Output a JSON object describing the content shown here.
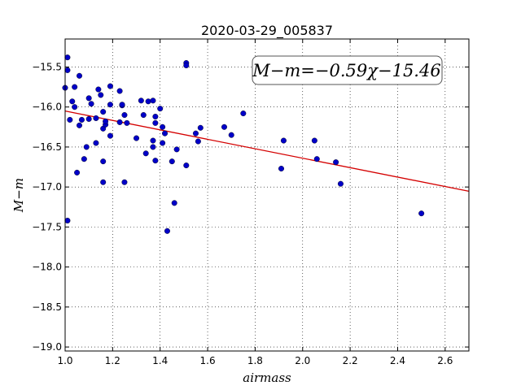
{
  "chart_data": {
    "type": "scatter",
    "title": "2020-03-29_005837",
    "xlabel": "airmass",
    "ylabel": "M−m",
    "xlim": [
      1.0,
      2.7
    ],
    "ylim": [
      -19.05,
      -15.15
    ],
    "y_inverted": true,
    "grid": true,
    "x_ticks": [
      1.0,
      1.2,
      1.4,
      1.6,
      1.8,
      2.0,
      2.2,
      2.4,
      2.6
    ],
    "x_tick_labels": [
      "1.0",
      "1.2",
      "1.4",
      "1.6",
      "1.8",
      "2.0",
      "2.2",
      "2.4",
      "2.6"
    ],
    "y_ticks": [
      -15.5,
      -16.0,
      -16.5,
      -17.0,
      -17.5,
      -18.0,
      -18.5,
      -19.0
    ],
    "y_tick_labels": [
      "−15.5",
      "−16.0",
      "−16.5",
      "−17.0",
      "−17.5",
      "−18.0",
      "−18.5",
      "−19.0"
    ],
    "annotation": "M−m=−0.59χ−15.46",
    "marker_color": "#0000c8",
    "fit_color": "#d40000",
    "fit": {
      "slope": -0.59,
      "intercept": -15.46
    },
    "points": [
      [
        1.0,
        -15.76
      ],
      [
        1.01,
        -17.42
      ],
      [
        1.01,
        -15.38
      ],
      [
        1.01,
        -15.54
      ],
      [
        1.02,
        -16.16
      ],
      [
        1.03,
        -15.93
      ],
      [
        1.04,
        -16.0
      ],
      [
        1.04,
        -15.75
      ],
      [
        1.05,
        -16.82
      ],
      [
        1.06,
        -16.23
      ],
      [
        1.06,
        -15.61
      ],
      [
        1.07,
        -16.16
      ],
      [
        1.08,
        -16.65
      ],
      [
        1.09,
        -16.5
      ],
      [
        1.1,
        -15.89
      ],
      [
        1.1,
        -16.15
      ],
      [
        1.11,
        -15.96
      ],
      [
        1.13,
        -16.45
      ],
      [
        1.13,
        -16.14
      ],
      [
        1.14,
        -15.78
      ],
      [
        1.15,
        -15.85
      ],
      [
        1.16,
        -16.06
      ],
      [
        1.16,
        -16.68
      ],
      [
        1.16,
        -16.94
      ],
      [
        1.16,
        -16.27
      ],
      [
        1.17,
        -16.22
      ],
      [
        1.17,
        -16.18
      ],
      [
        1.19,
        -16.36
      ],
      [
        1.19,
        -15.74
      ],
      [
        1.19,
        -15.97
      ],
      [
        1.23,
        -15.8
      ],
      [
        1.23,
        -16.19
      ],
      [
        1.24,
        -15.98
      ],
      [
        1.24,
        -15.97
      ],
      [
        1.25,
        -16.1
      ],
      [
        1.25,
        -16.94
      ],
      [
        1.26,
        -16.2
      ],
      [
        1.3,
        -16.39
      ],
      [
        1.32,
        -15.92
      ],
      [
        1.33,
        -16.1
      ],
      [
        1.34,
        -16.58
      ],
      [
        1.35,
        -15.93
      ],
      [
        1.37,
        -15.92
      ],
      [
        1.37,
        -16.42
      ],
      [
        1.37,
        -16.5
      ],
      [
        1.38,
        -16.2
      ],
      [
        1.38,
        -16.67
      ],
      [
        1.38,
        -16.12
      ],
      [
        1.4,
        -16.02
      ],
      [
        1.41,
        -16.45
      ],
      [
        1.41,
        -16.25
      ],
      [
        1.42,
        -16.33
      ],
      [
        1.43,
        -17.55
      ],
      [
        1.45,
        -16.68
      ],
      [
        1.46,
        -17.2
      ],
      [
        1.47,
        -16.53
      ],
      [
        1.51,
        -15.45
      ],
      [
        1.51,
        -15.48
      ],
      [
        1.51,
        -16.73
      ],
      [
        1.55,
        -16.33
      ],
      [
        1.56,
        -16.43
      ],
      [
        1.57,
        -16.26
      ],
      [
        1.67,
        -16.25
      ],
      [
        1.7,
        -16.35
      ],
      [
        1.75,
        -16.08
      ],
      [
        1.91,
        -16.77
      ],
      [
        1.92,
        -16.42
      ],
      [
        2.05,
        -16.42
      ],
      [
        2.06,
        -16.65
      ],
      [
        2.14,
        -16.69
      ],
      [
        2.16,
        -16.96
      ],
      [
        2.5,
        -17.33
      ]
    ]
  }
}
